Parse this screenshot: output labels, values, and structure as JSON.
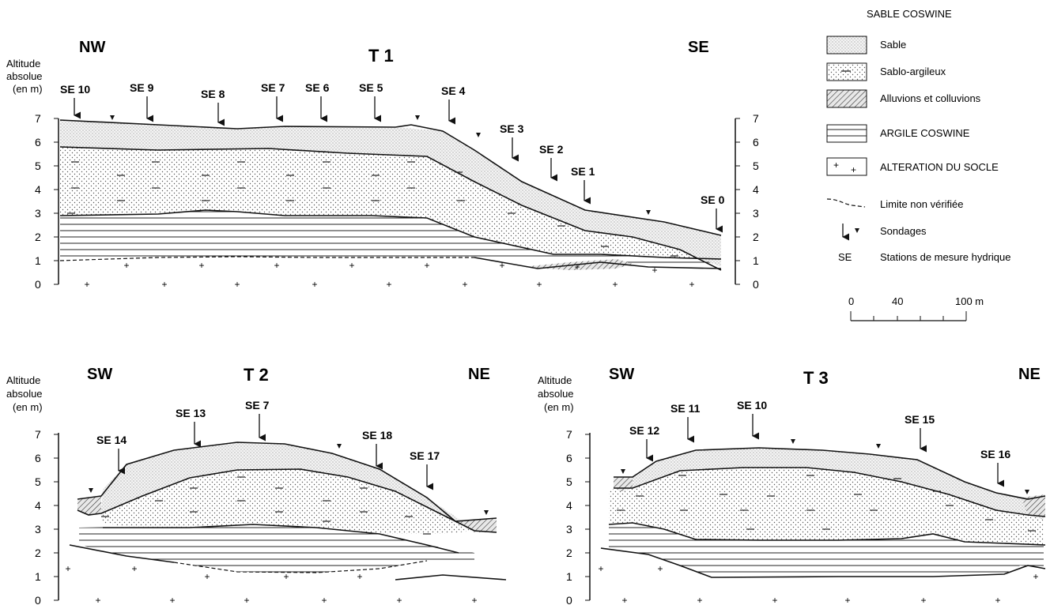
{
  "legend": {
    "group_title": "SABLE  COSWINE",
    "items": [
      {
        "key": "sable",
        "label": "Sable"
      },
      {
        "key": "sablo",
        "label": "Sablo-argileux"
      },
      {
        "key": "alluvions",
        "label": "Alluvions et colluvions"
      },
      {
        "key": "argile",
        "label": "ARGILE COSWINE"
      },
      {
        "key": "alteration",
        "label": "ALTERATION DU SOCLE"
      },
      {
        "key": "limite",
        "label": "Limite non vérifiée"
      },
      {
        "key": "sondages",
        "label": "Sondages"
      },
      {
        "key": "stations",
        "symbol": "SE",
        "label": "Stations de mesure hydrique"
      }
    ],
    "scale": {
      "ticks": [
        "0",
        "40",
        "100 m"
      ]
    }
  },
  "axis_label": [
    "Altitude",
    "absolue",
    "(en m)"
  ],
  "y_ticks": [
    "0",
    "1",
    "2",
    "3",
    "4",
    "5",
    "6",
    "7"
  ],
  "profiles": [
    {
      "id": "t1",
      "title": "T 1",
      "left_dir": "NW",
      "right_dir": "SE",
      "right_axis": true,
      "stations": [
        "SE 10",
        "SE 9",
        "SE 8",
        "SE 7",
        "SE 6",
        "SE 5",
        "SE 4",
        "SE 3",
        "SE 2",
        "SE 1",
        "SE 0"
      ]
    },
    {
      "id": "t2",
      "title": "T 2",
      "left_dir": "SW",
      "right_dir": "NE",
      "right_axis": false,
      "stations": [
        "SE 14",
        "SE 13",
        "SE 7",
        "SE 18",
        "SE 17"
      ]
    },
    {
      "id": "t3",
      "title": "T 3",
      "left_dir": "SW",
      "right_dir": "NE",
      "right_axis": false,
      "stations": [
        "SE 12",
        "SE 11",
        "SE 10",
        "SE 15",
        "SE 16"
      ]
    }
  ]
}
